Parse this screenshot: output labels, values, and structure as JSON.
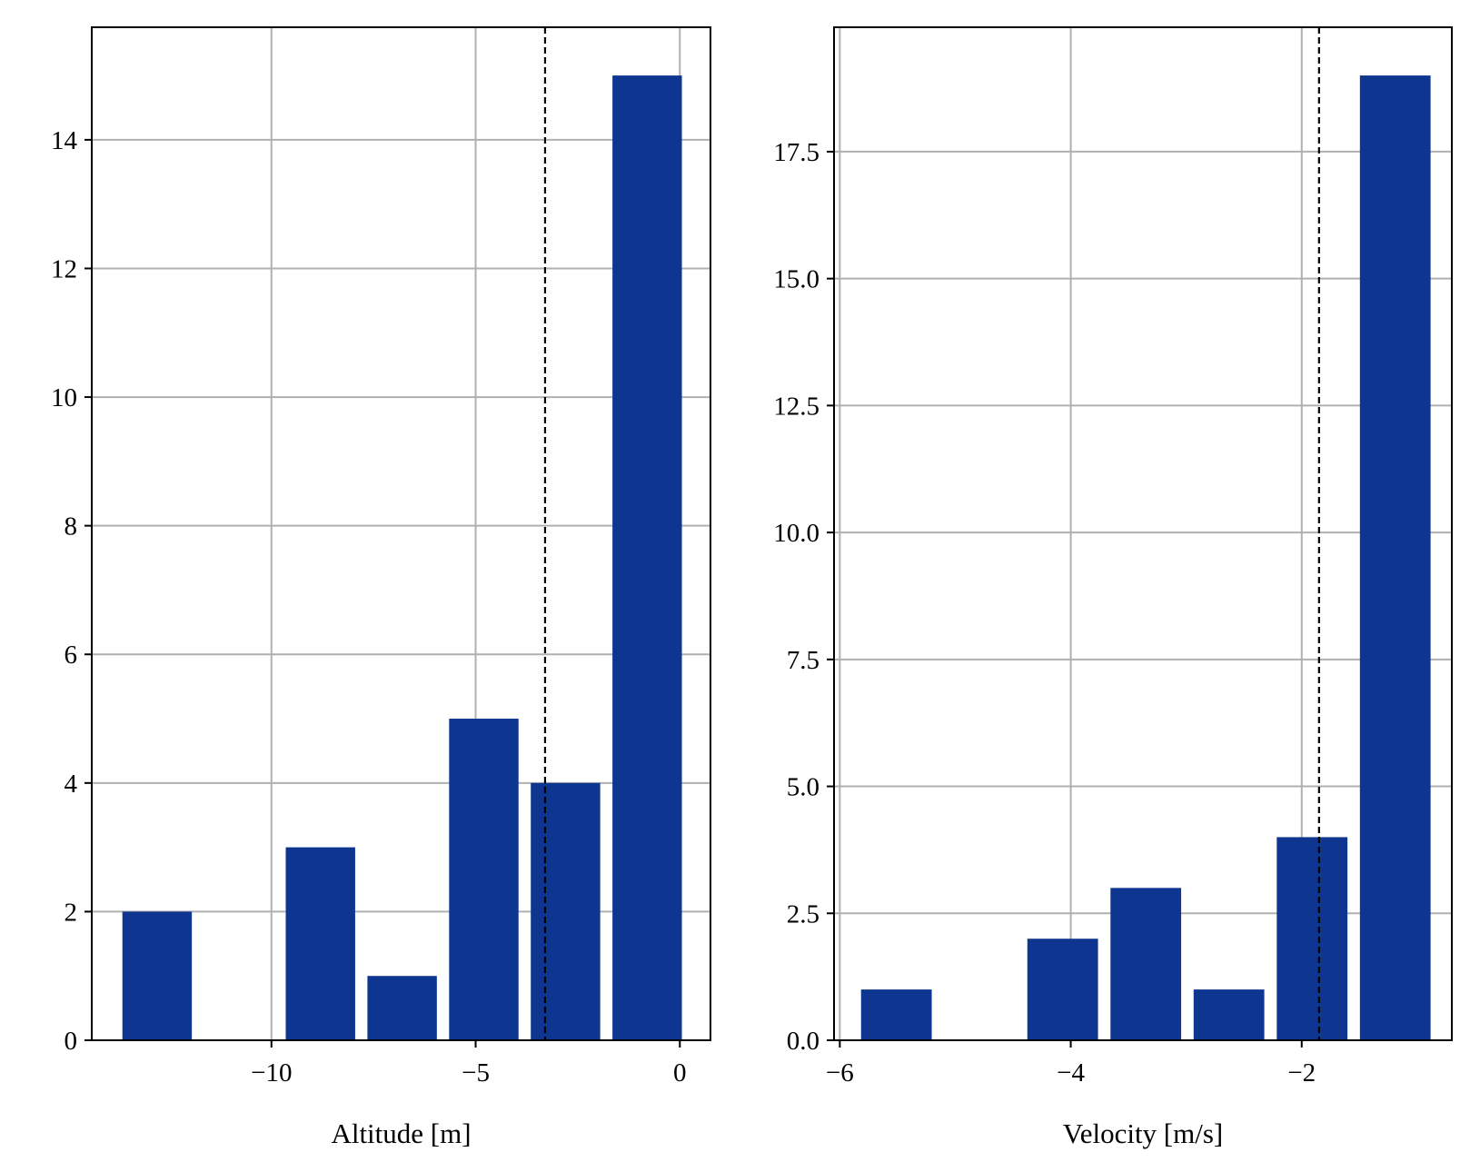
{
  "chart_data": [
    {
      "type": "bar",
      "xlabel": "Altitude [m]",
      "ylabel": "",
      "bar_color": "#0e3691",
      "grid": true,
      "xlim": [
        -14.4,
        0.75
      ],
      "ylim": [
        0,
        15.75
      ],
      "xticks": [
        -10,
        -5,
        0
      ],
      "xtick_labels": [
        "−10",
        "−5",
        "0"
      ],
      "yticks": [
        0,
        2,
        4,
        6,
        8,
        10,
        12,
        14
      ],
      "ytick_labels": [
        "0",
        "2",
        "4",
        "6",
        "8",
        "10",
        "12",
        "14"
      ],
      "bin_edges": [
        -13.8,
        -11.8,
        -9.8,
        -7.8,
        -5.8,
        -3.8,
        -1.8,
        0.2
      ],
      "bar_width_fraction": 0.85,
      "values": [
        2,
        0,
        3,
        1,
        5,
        4,
        15
      ],
      "vline": {
        "x": -3.3,
        "style": "dashed",
        "color": "#000000"
      }
    },
    {
      "type": "bar",
      "xlabel": "Velocity [m/s]",
      "ylabel": "",
      "bar_color": "#0e3691",
      "grid": true,
      "xlim": [
        -6.05,
        -0.7
      ],
      "ylim": [
        0,
        19.95
      ],
      "xticks": [
        -6,
        -4,
        -2
      ],
      "xtick_labels": [
        "−6",
        "−4",
        "−2"
      ],
      "yticks": [
        0,
        2.5,
        5,
        7.5,
        10,
        12.5,
        15,
        17.5
      ],
      "ytick_labels": [
        "0.0",
        "2.5",
        "5.0",
        "7.5",
        "10.0",
        "12.5",
        "15.0",
        "17.5"
      ],
      "bin_edges": [
        -5.87,
        -5.15,
        -4.43,
        -3.71,
        -2.99,
        -2.27,
        -1.55,
        -0.83
      ],
      "bar_width_fraction": 0.85,
      "values": [
        1,
        0,
        2,
        3,
        1,
        4,
        19
      ],
      "vline": {
        "x": -1.85,
        "style": "dashed",
        "color": "#000000"
      }
    }
  ]
}
